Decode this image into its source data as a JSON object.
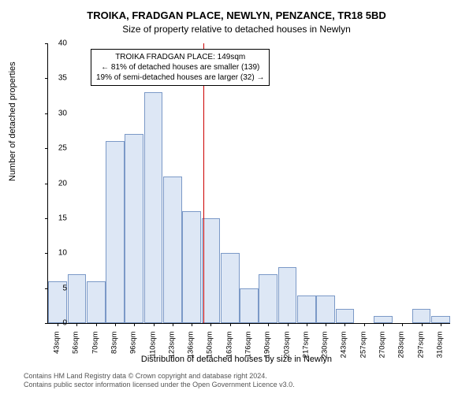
{
  "title_line1": "TROIKA, FRADGAN PLACE, NEWLYN, PENZANCE, TR18 5BD",
  "title_line2": "Size of property relative to detached houses in Newlyn",
  "ylabel": "Number of detached properties",
  "xlabel": "Distribution of detached houses by size in Newlyn",
  "footer_line1": "Contains HM Land Registry data © Crown copyright and database right 2024.",
  "footer_line2": "Contains public sector information licensed under the Open Government Licence v3.0.",
  "annotation": {
    "line1": "TROIKA FRADGAN PLACE: 149sqm",
    "line2": "← 81% of detached houses are smaller (139)",
    "line3": "19% of semi-detached houses are larger (32) →"
  },
  "chart": {
    "type": "histogram",
    "ylim": [
      0,
      40
    ],
    "ytick_step": 5,
    "bar_fill": "#dde7f5",
    "bar_border": "#7b99c7",
    "ref_line_color": "#cc0000",
    "ref_line_x_index": 8.1,
    "background_color": "#ffffff",
    "x_categories": [
      "43sqm",
      "56sqm",
      "70sqm",
      "83sqm",
      "96sqm",
      "110sqm",
      "123sqm",
      "136sqm",
      "150sqm",
      "163sqm",
      "176sqm",
      "190sqm",
      "203sqm",
      "217sqm",
      "230sqm",
      "243sqm",
      "257sqm",
      "270sqm",
      "283sqm",
      "297sqm",
      "310sqm"
    ],
    "values": [
      6,
      7,
      6,
      26,
      27,
      33,
      21,
      16,
      15,
      10,
      5,
      7,
      8,
      4,
      4,
      2,
      0,
      1,
      0,
      2,
      1
    ],
    "bar_width_ratio": 0.98
  }
}
